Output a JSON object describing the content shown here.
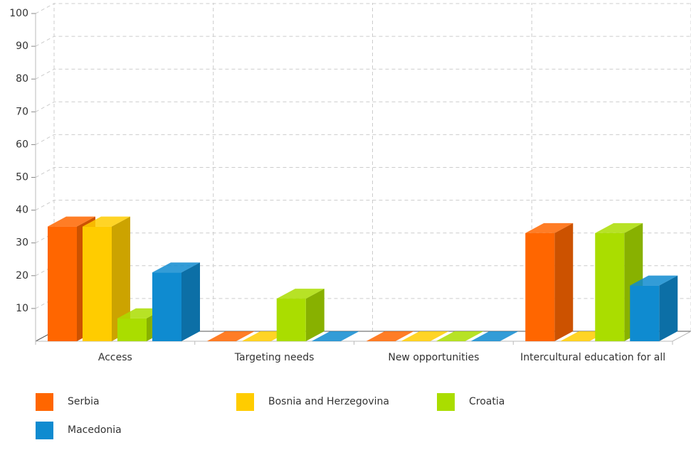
{
  "chart_data": {
    "type": "bar3d",
    "categories": [
      "Access",
      "Targeting needs",
      "New opportunities",
      "Intercultural education for all"
    ],
    "series": [
      {
        "name": "Serbia",
        "color": "#ff6600",
        "values": [
          35,
          0,
          0,
          33
        ]
      },
      {
        "name": "Bosnia and Herzegovina",
        "color": "#ffcc00",
        "values": [
          35,
          0,
          0,
          0
        ]
      },
      {
        "name": "Croatia",
        "color": "#aadd00",
        "values": [
          7,
          13,
          0,
          33
        ]
      },
      {
        "name": "Macedonia",
        "color": "#0f8bd0",
        "values": [
          21,
          0,
          0,
          17
        ]
      }
    ],
    "ylim": [
      0,
      100
    ],
    "yticks": [
      10,
      20,
      30,
      40,
      50,
      60,
      70,
      80,
      90,
      100
    ],
    "grid": true
  }
}
